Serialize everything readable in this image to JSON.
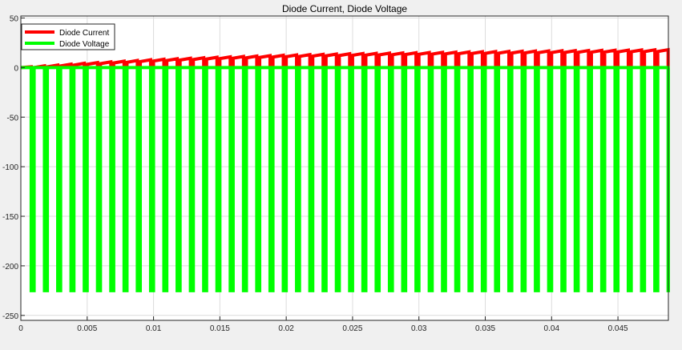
{
  "colors": {
    "background": "#f0f0f0",
    "axes_background": "#ffffff",
    "grid": "#dcdcdc",
    "series_current": "#ff0000",
    "series_voltage": "#00ff00"
  },
  "chart_data": {
    "type": "line",
    "title": "Diode Current, Diode Voltage",
    "xlabel": "",
    "ylabel": "",
    "xlim": [
      0,
      0.0488
    ],
    "ylim": [
      -255,
      52
    ],
    "grid": true,
    "legend_position": "top-left",
    "x_ticks": [
      0,
      0.005,
      0.01,
      0.015,
      0.02,
      0.025,
      0.03,
      0.035,
      0.04,
      0.045
    ],
    "x_tick_labels": [
      "0",
      "0.005",
      "0.01",
      "0.015",
      "0.02",
      "0.025",
      "0.03",
      "0.035",
      "0.04",
      "0.045"
    ],
    "y_ticks": [
      50,
      0,
      -50,
      -100,
      -150,
      -200,
      -250
    ],
    "y_tick_labels": [
      "50",
      "0",
      "-50",
      "-100",
      "-150",
      "-200",
      "-250"
    ],
    "switching_period": 0.001,
    "off_fraction": 0.22,
    "series": [
      {
        "name": "Diode Current",
        "color": "#ff0000",
        "description": "sawtooth current rising within each on interval, envelope increasing over time",
        "peak_times": [
          0.001,
          0.005,
          0.01,
          0.015,
          0.02,
          0.025,
          0.03,
          0.035,
          0.04,
          0.045,
          0.0485
        ],
        "peak_values": [
          1,
          4.5,
          8,
          10.5,
          12.5,
          14,
          15,
          16,
          16.8,
          17.5,
          18
        ]
      },
      {
        "name": "Diode Voltage",
        "color": "#00ff00",
        "description": "0 V while conducting, drops to about -225 V during each off interval",
        "on_value": 0,
        "off_value": -225
      }
    ]
  }
}
